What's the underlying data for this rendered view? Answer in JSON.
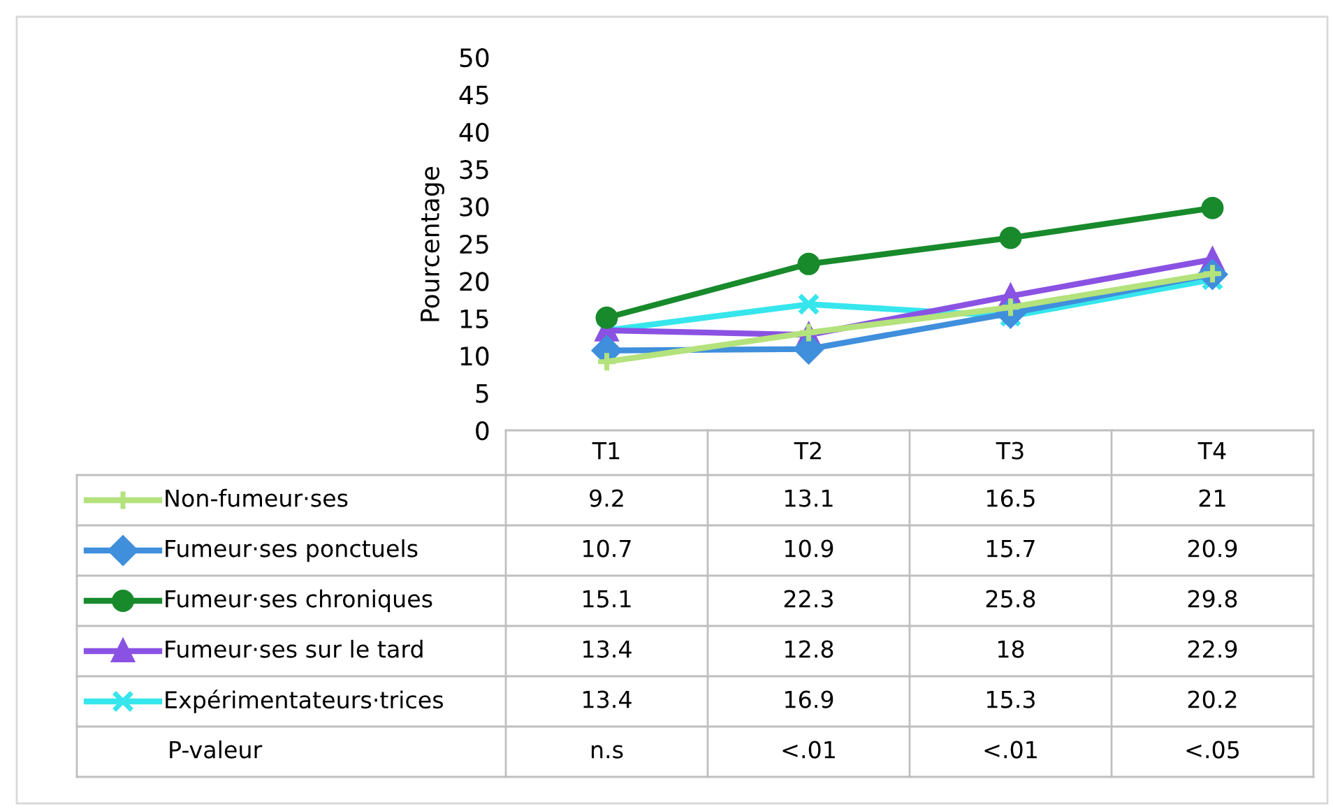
{
  "chart_data": {
    "type": "line",
    "ylabel": "Pourcentage",
    "categories": [
      "T1",
      "T2",
      "T3",
      "T4"
    ],
    "series": [
      {
        "name": "Non-fumeur·ses",
        "color": "#b4e27c",
        "marker": "plus",
        "values": [
          9.2,
          13.1,
          16.5,
          21
        ]
      },
      {
        "name": "Fumeur·ses ponctuels",
        "color": "#3f8fdc",
        "marker": "diamond",
        "values": [
          10.7,
          10.9,
          15.7,
          20.9
        ]
      },
      {
        "name": "Fumeur·ses chroniques",
        "color": "#188a2c",
        "marker": "circle",
        "values": [
          15.1,
          22.3,
          25.8,
          29.8
        ]
      },
      {
        "name": "Fumeur·ses sur le tard",
        "color": "#8a52e3",
        "marker": "triangle",
        "values": [
          13.4,
          12.8,
          18,
          22.9
        ]
      },
      {
        "name": "Expérimentateurs·trices",
        "color": "#36e6ec",
        "marker": "cross",
        "values": [
          13.4,
          16.9,
          15.3,
          20.2
        ]
      }
    ],
    "ylim": [
      0,
      50
    ],
    "yticks": [
      0,
      5,
      10,
      15,
      20,
      25,
      30,
      35,
      40,
      45,
      50
    ],
    "grid": false,
    "legend": "bottom",
    "data_labels": true,
    "annotations": [
      "P-valeur",
      "n.s",
      "<.01",
      "<.01",
      "<.05"
    ]
  }
}
